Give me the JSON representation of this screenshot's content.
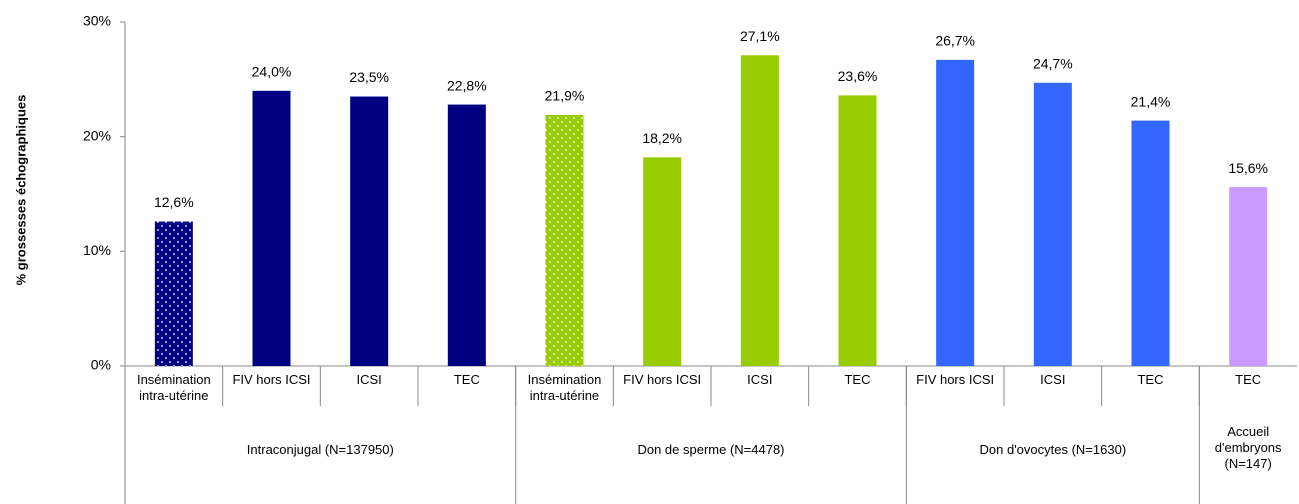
{
  "chart_data": {
    "type": "bar",
    "y_label": "% grossesses échographiques",
    "categories": [
      "Insémination intra-utérine",
      "FIV hors ICSI",
      "ICSI",
      "TEC",
      "Insémination intra-utérine",
      "FIV hors ICSI",
      "ICSI",
      "TEC",
      "FIV hors ICSI",
      "ICSI",
      "TEC",
      "TEC"
    ],
    "values": [
      12.6,
      24.0,
      23.5,
      22.8,
      21.9,
      18.2,
      27.1,
      23.6,
      26.7,
      24.7,
      21.4,
      15.6
    ],
    "value_labels": [
      "12,6%",
      "24,0%",
      "23,5%",
      "22,8%",
      "21,9%",
      "18,2%",
      "27,1%",
      "23,6%",
      "26,7%",
      "24,7%",
      "21,4%",
      "15,6%"
    ],
    "colors": [
      "#000080",
      "#000080",
      "#000080",
      "#000080",
      "#99cc00",
      "#99cc00",
      "#99cc00",
      "#99cc00",
      "#3366ff",
      "#3366ff",
      "#3366ff",
      "#cc99ff"
    ],
    "dotted": [
      true,
      false,
      false,
      false,
      true,
      false,
      false,
      false,
      false,
      false,
      false,
      false
    ],
    "groups": [
      {
        "label": "Intraconjugal (N=137950)",
        "size": 4
      },
      {
        "label": "Don de sperme (N=4478)",
        "size": 4
      },
      {
        "label": "Don d'ovocytes (N=1630)",
        "size": 3
      },
      {
        "label": "Accueil d'embryons (N=147)",
        "size": 1
      }
    ],
    "ylim": [
      0,
      30
    ],
    "yticks": [
      {
        "value": 0,
        "label": "0%"
      },
      {
        "value": 10,
        "label": "10%"
      },
      {
        "value": 20,
        "label": "20%"
      },
      {
        "value": 30,
        "label": "30%"
      }
    ],
    "grid": false
  }
}
